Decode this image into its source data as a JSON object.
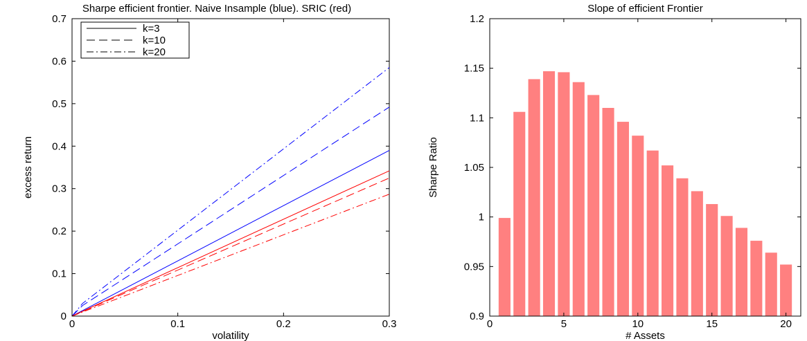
{
  "chart_data": [
    {
      "type": "line",
      "title": "Sharpe efficient frontier. Naive Insample (blue). SRIC (red)",
      "xlabel": "volatility",
      "ylabel": "excess return",
      "xlim": [
        0,
        0.3
      ],
      "ylim": [
        0,
        0.7
      ],
      "xticks": [
        0,
        0.1,
        0.2,
        0.3
      ],
      "xtick_labels": [
        "0",
        "0.1",
        "0.2",
        "0.3"
      ],
      "yticks": [
        0,
        0.1,
        0.2,
        0.3,
        0.4,
        0.5,
        0.6,
        0.7
      ],
      "ytick_labels": [
        "0",
        "0.1",
        "0.2",
        "0.3",
        "0.4",
        "0.5",
        "0.6",
        "0.7"
      ],
      "grid": false,
      "legend": "top-left",
      "legend_entries": [
        {
          "label": "k=3",
          "style": "solid"
        },
        {
          "label": "k=10",
          "style": "dashed"
        },
        {
          "label": "k=20",
          "style": "dashdot"
        }
      ],
      "series": [
        {
          "k": "k=3",
          "style": "solid",
          "color": "#0000ff",
          "x": [
            0,
            0.3
          ],
          "y": [
            0,
            0.39
          ]
        },
        {
          "k": "k=10",
          "style": "dashed",
          "color": "#0000ff",
          "x": [
            0,
            0.01,
            0.3
          ],
          "y": [
            0,
            0.025,
            0.492
          ]
        },
        {
          "k": "k=20",
          "style": "dashdot",
          "color": "#0000ff",
          "x": [
            0,
            0.01,
            0.3
          ],
          "y": [
            0,
            0.03,
            0.585
          ]
        },
        {
          "k": "k=3",
          "style": "solid",
          "color": "#ff0000",
          "x": [
            0,
            0.3
          ],
          "y": [
            0,
            0.342
          ]
        },
        {
          "k": "k=10",
          "style": "dashed",
          "color": "#ff0000",
          "x": [
            0,
            0.3
          ],
          "y": [
            0,
            0.325
          ]
        },
        {
          "k": "k=20",
          "style": "dashdot",
          "color": "#ff0000",
          "x": [
            0,
            0.3
          ],
          "y": [
            0,
            0.287
          ]
        }
      ]
    },
    {
      "type": "bar",
      "title": "Slope of efficient Frontier",
      "xlabel": "# Assets",
      "ylabel": "Sharpe Ratio",
      "xlim": [
        0,
        21
      ],
      "ylim": [
        0.9,
        1.2
      ],
      "xticks": [
        0,
        5,
        10,
        15,
        20
      ],
      "xtick_labels": [
        "0",
        "5",
        "10",
        "15",
        "20"
      ],
      "yticks": [
        0.9,
        0.95,
        1.0,
        1.05,
        1.1,
        1.15,
        1.2
      ],
      "ytick_labels": [
        "0.9",
        "0.95",
        "1",
        "1.05",
        "1.1",
        "1.15",
        "1.2"
      ],
      "grid": false,
      "bar_color": "#ff8080",
      "x": [
        1,
        2,
        3,
        4,
        5,
        6,
        7,
        8,
        9,
        10,
        11,
        12,
        13,
        14,
        15,
        16,
        17,
        18,
        19,
        20
      ],
      "values": [
        0.999,
        1.106,
        1.139,
        1.147,
        1.146,
        1.136,
        1.123,
        1.11,
        1.096,
        1.082,
        1.067,
        1.052,
        1.039,
        1.026,
        1.013,
        1.001,
        0.989,
        0.976,
        0.964,
        0.952
      ]
    }
  ]
}
